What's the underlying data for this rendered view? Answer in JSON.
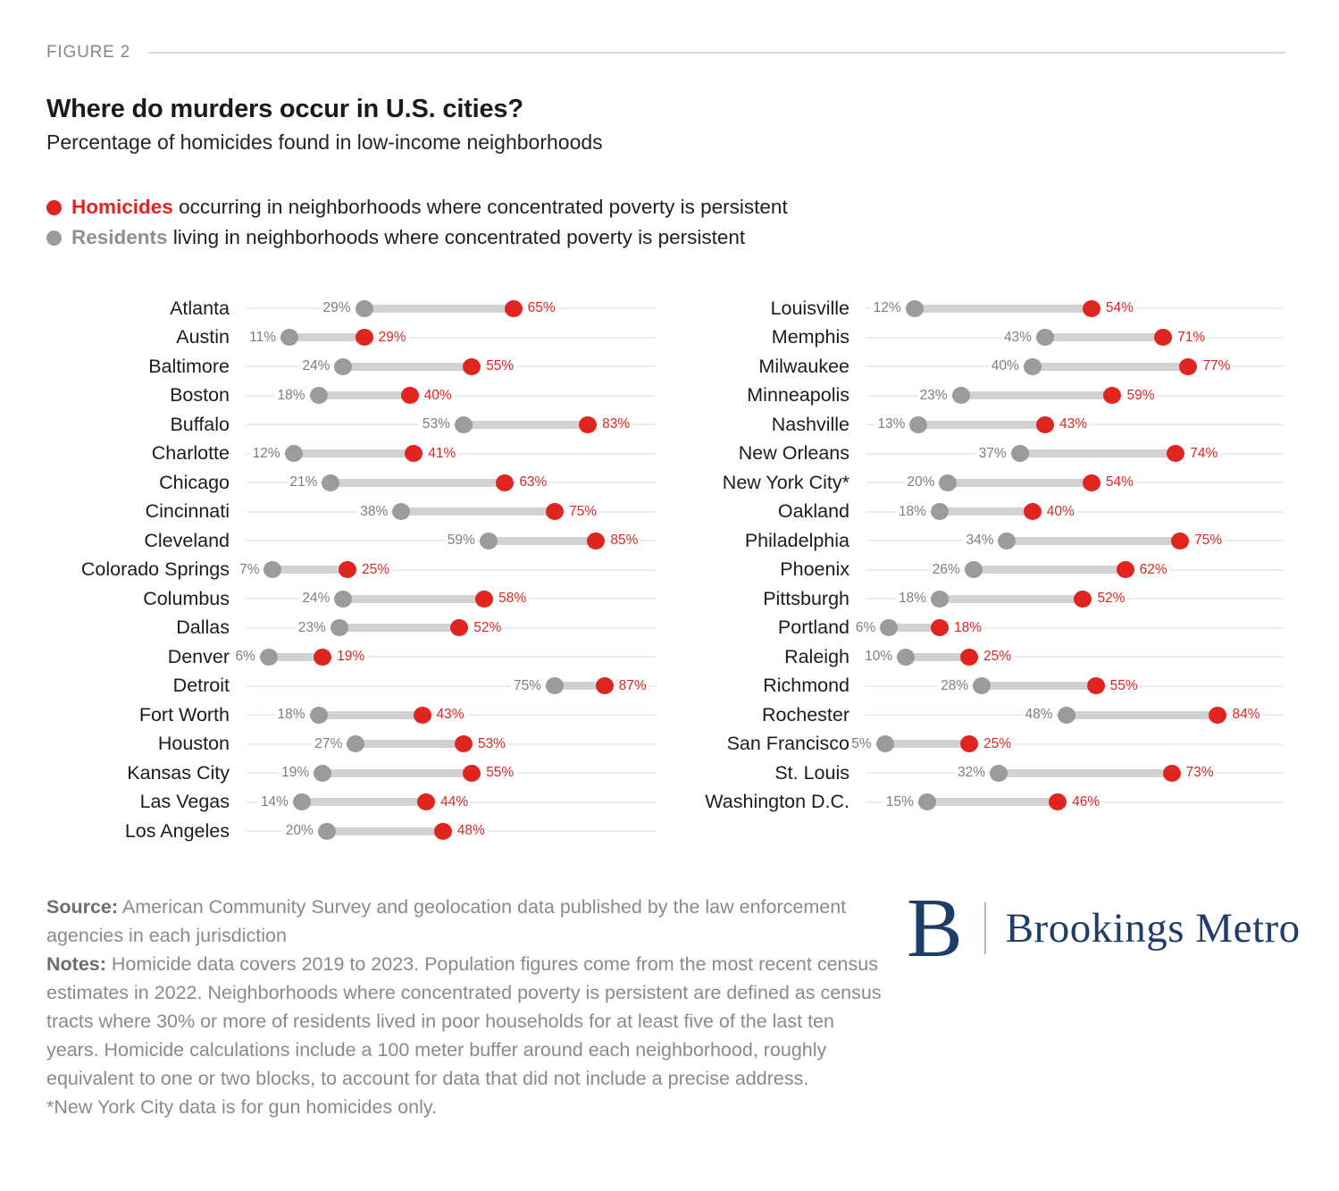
{
  "figure": {
    "label": "FIGURE 2"
  },
  "header": {
    "title": "Where do murders occur in U.S. cities?",
    "subtitle": "Percentage of homicides found in low-income neighborhoods"
  },
  "legend": {
    "homicides": {
      "term": "Homicides",
      "description": "occurring in neighborhoods where concentrated poverty is persistent"
    },
    "residents": {
      "term": "Residents",
      "description": "living in neighborhoods where concentrated poverty is persistent"
    }
  },
  "colors": {
    "homicides": "#e02521",
    "residents": "#9b9b9b",
    "connector": "#d2d2d2",
    "track": "#ececec",
    "navy": "#1e3d6b"
  },
  "chart_data": {
    "type": "dumbbell",
    "unit": "%",
    "x_range": [
      0,
      100
    ],
    "grid": false,
    "series": [
      {
        "name": "Homicides occurring in neighborhoods where concentrated poverty is persistent",
        "color": "#e02521"
      },
      {
        "name": "Residents living in neighborhoods where concentrated poverty is persistent",
        "color": "#9b9b9b"
      }
    ],
    "columns": [
      {
        "rows": [
          {
            "city": "Atlanta",
            "residents": 29,
            "homicides": 65
          },
          {
            "city": "Austin",
            "residents": 11,
            "homicides": 29
          },
          {
            "city": "Baltimore",
            "residents": 24,
            "homicides": 55
          },
          {
            "city": "Boston",
            "residents": 18,
            "homicides": 40
          },
          {
            "city": "Buffalo",
            "residents": 53,
            "homicides": 83
          },
          {
            "city": "Charlotte",
            "residents": 12,
            "homicides": 41
          },
          {
            "city": "Chicago",
            "residents": 21,
            "homicides": 63
          },
          {
            "city": "Cincinnati",
            "residents": 38,
            "homicides": 75
          },
          {
            "city": "Cleveland",
            "residents": 59,
            "homicides": 85
          },
          {
            "city": "Colorado Springs",
            "residents": 7,
            "homicides": 25
          },
          {
            "city": "Columbus",
            "residents": 24,
            "homicides": 58
          },
          {
            "city": "Dallas",
            "residents": 23,
            "homicides": 52
          },
          {
            "city": "Denver",
            "residents": 6,
            "homicides": 19
          },
          {
            "city": "Detroit",
            "residents": 75,
            "homicides": 87
          },
          {
            "city": "Fort Worth",
            "residents": 18,
            "homicides": 43
          },
          {
            "city": "Houston",
            "residents": 27,
            "homicides": 53
          },
          {
            "city": "Kansas City",
            "residents": 19,
            "homicides": 55
          },
          {
            "city": "Las Vegas",
            "residents": 14,
            "homicides": 44
          },
          {
            "city": "Los Angeles",
            "residents": 20,
            "homicides": 48
          }
        ]
      },
      {
        "rows": [
          {
            "city": "Louisville",
            "residents": 12,
            "homicides": 54
          },
          {
            "city": "Memphis",
            "residents": 43,
            "homicides": 71
          },
          {
            "city": "Milwaukee",
            "residents": 40,
            "homicides": 77
          },
          {
            "city": "Minneapolis",
            "residents": 23,
            "homicides": 59
          },
          {
            "city": "Nashville",
            "residents": 13,
            "homicides": 43
          },
          {
            "city": "New Orleans",
            "residents": 37,
            "homicides": 74
          },
          {
            "city": "New York City*",
            "residents": 20,
            "homicides": 54
          },
          {
            "city": "Oakland",
            "residents": 18,
            "homicides": 40
          },
          {
            "city": "Philadelphia",
            "residents": 34,
            "homicides": 75
          },
          {
            "city": "Phoenix",
            "residents": 26,
            "homicides": 62
          },
          {
            "city": "Pittsburgh",
            "residents": 18,
            "homicides": 52
          },
          {
            "city": "Portland",
            "residents": 6,
            "homicides": 18
          },
          {
            "city": "Raleigh",
            "residents": 10,
            "homicides": 25
          },
          {
            "city": "Richmond",
            "residents": 28,
            "homicides": 55
          },
          {
            "city": "Rochester",
            "residents": 48,
            "homicides": 84
          },
          {
            "city": "San Francisco",
            "residents": 5,
            "homicides": 25
          },
          {
            "city": "St. Louis",
            "residents": 32,
            "homicides": 73
          },
          {
            "city": "Washington D.C.",
            "residents": 15,
            "homicides": 46
          }
        ]
      }
    ]
  },
  "footer": {
    "source_label": "Source:",
    "source_text": " American Community Survey and geolocation data published by the law enforcement agencies in each jurisdiction",
    "notes_label": "Notes:",
    "notes_text": " Homicide data covers 2019 to 2023. Population figures come from the most recent census estimates in 2022. Neighborhoods where concentrated poverty is persistent are defined as census tracts where 30% or more of residents lived in poor households for at least five of the last ten years. Homicide calculations include a 100 meter buffer around each neighborhood, roughly equivalent to one or two blocks, to account for data that did not include a precise address.",
    "asterisk_note": "*New York City data is for gun homicides only."
  },
  "logo": {
    "letter": "B",
    "name": "Brookings Metro"
  }
}
